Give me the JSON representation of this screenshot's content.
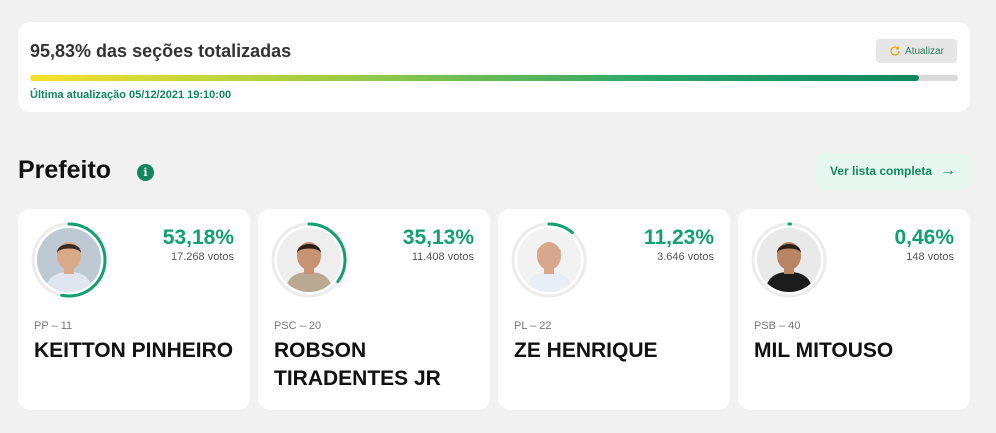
{
  "status": {
    "title": "95,83% das seções totalizadas",
    "progress_percent": 95.83,
    "last_update": "Última atualização 05/12/2021 19:10:00",
    "refresh_label": "Atualizar"
  },
  "section": {
    "title": "Prefeito",
    "info_icon": "info-icon",
    "full_list_label": "Ver lista completa",
    "full_list_arrow": "→"
  },
  "colors": {
    "accent": "#13a071",
    "dark_green": "#12865e",
    "ring_track": "#ececec"
  },
  "candidates": [
    {
      "party": "PP – 11",
      "name": "KEITTON PINHEIRO",
      "percent_label": "53,18%",
      "percent": 53.18,
      "votes": "17.268 votos",
      "skin": "#d9a98a",
      "hair": "#3a2a22",
      "shirt": "#dfe6ef",
      "bg": "#bfc9d3"
    },
    {
      "party": "PSC – 20",
      "name": "ROBSON TIRADENTES JR",
      "percent_label": "35,13%",
      "percent": 35.13,
      "votes": "11.408 votos",
      "skin": "#c89274",
      "hair": "#2a1f1a",
      "shirt": "#b9a992",
      "bg": "#eeeeee"
    },
    {
      "party": "PL – 22",
      "name": "ZE HENRIQUE",
      "percent_label": "11,23%",
      "percent": 11.23,
      "votes": "3.646 votos",
      "skin": "#d8a88c",
      "hair": "#d8a88c",
      "shirt": "#e8eef6",
      "bg": "#f2f2f2"
    },
    {
      "party": "PSB – 40",
      "name": "MIL MITOUSO",
      "percent_label": "0,46%",
      "percent": 0.46,
      "votes": "148 votos",
      "skin": "#b98463",
      "hair": "#2b211c",
      "shirt": "#1c1c1c",
      "bg": "#e9e9e9"
    }
  ]
}
